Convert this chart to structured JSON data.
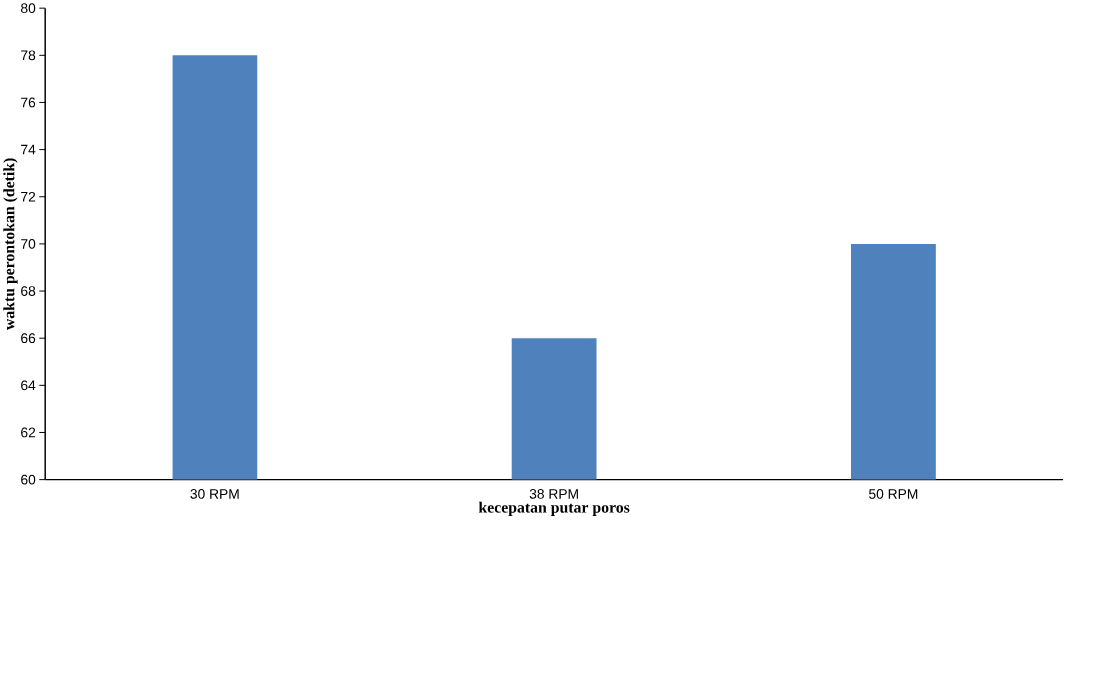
{
  "chart_data": {
    "type": "bar",
    "xlabel": "kecepatan putar poros",
    "ylabel": "waktu perontokan (detik)",
    "categories": [
      "30 RPM",
      "38 RPM",
      "50 RPM"
    ],
    "values": [
      78,
      66,
      70
    ],
    "color": "#4f81bd",
    "ylim": [
      60,
      80
    ],
    "yticks": [
      60,
      62,
      64,
      66,
      68,
      70,
      72,
      74,
      76,
      78,
      80
    ]
  }
}
